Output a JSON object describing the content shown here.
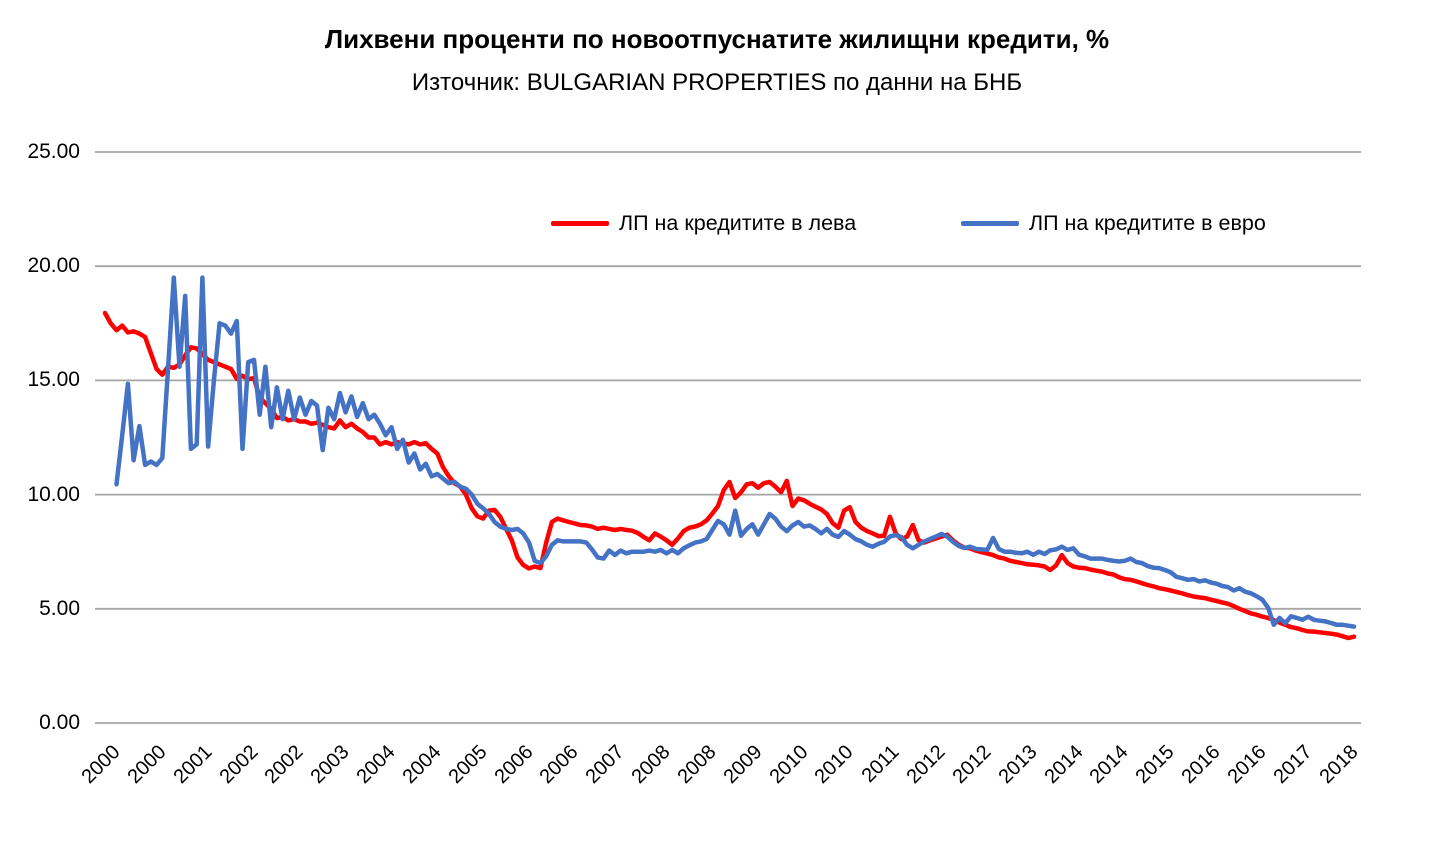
{
  "title": "Лихвени проценти по новоотпуснатите жилищни кредити, %",
  "subtitle": "Източник: BULGARIAN PROPERTIES по данни на БНБ",
  "colors": {
    "series_bgn": "#FF0000",
    "series_eur": "#4472C4",
    "gridline": "#A6A6A6",
    "text": "#000000",
    "background": "#FFFFFF"
  },
  "chart_data": {
    "type": "line",
    "title": "Лихвени проценти по новоотпуснатите жилищни кредити, %",
    "subtitle": "Източник: BULGARIAN PROPERTIES по данни на БНБ",
    "xlabel": "",
    "ylabel": "",
    "ylim": [
      0,
      25
    ],
    "grid": "horizontal",
    "legend_position": "top-center",
    "x_unit": "month",
    "x_start": "2000-01",
    "x_end": "2018-03",
    "x_tick_every": 8,
    "x_tick_labels": [
      "2000",
      "2000",
      "2001",
      "2002",
      "2002",
      "2003",
      "2004",
      "2004",
      "2005",
      "2006",
      "2006",
      "2007",
      "2008",
      "2008",
      "2009",
      "2010",
      "2010",
      "2011",
      "2012",
      "2012",
      "2013",
      "2014",
      "2014",
      "2015",
      "2016",
      "2016",
      "2017",
      "2018"
    ],
    "y_ticks": [
      "25.00",
      "20.00",
      "15.00",
      "10.00",
      "5.00",
      "0.00"
    ],
    "series": [
      {
        "name": "ЛП на кредитите в лева",
        "color": "#FF0000",
        "values": [
          17.95,
          17.5,
          17.2,
          17.4,
          17.1,
          17.15,
          17.05,
          16.9,
          16.2,
          15.5,
          15.25,
          15.6,
          15.55,
          15.7,
          16.1,
          16.45,
          16.4,
          16.15,
          15.9,
          15.8,
          15.7,
          15.6,
          15.5,
          15.07,
          15.2,
          15.05,
          15.1,
          14.25,
          14.0,
          13.75,
          13.35,
          13.4,
          13.25,
          13.3,
          13.2,
          13.2,
          13.1,
          13.15,
          13.05,
          12.95,
          12.9,
          13.25,
          12.95,
          13.1,
          12.9,
          12.74,
          12.5,
          12.5,
          12.2,
          12.3,
          12.2,
          12.3,
          12.25,
          12.2,
          12.3,
          12.2,
          12.25,
          12.0,
          11.8,
          11.2,
          10.8,
          10.5,
          10.35,
          10.0,
          9.4,
          9.05,
          8.95,
          9.3,
          9.33,
          9.03,
          8.5,
          8.0,
          7.25,
          6.92,
          6.77,
          6.85,
          6.78,
          7.9,
          8.8,
          8.95,
          8.87,
          8.8,
          8.74,
          8.67,
          8.65,
          8.6,
          8.5,
          8.55,
          8.5,
          8.45,
          8.5,
          8.45,
          8.42,
          8.32,
          8.15,
          8.0,
          8.3,
          8.16,
          8.0,
          7.8,
          8.08,
          8.4,
          8.55,
          8.6,
          8.7,
          8.87,
          9.17,
          9.5,
          10.2,
          10.55,
          9.85,
          10.1,
          10.45,
          10.5,
          10.3,
          10.5,
          10.55,
          10.35,
          10.1,
          10.6,
          9.5,
          9.83,
          9.75,
          9.6,
          9.47,
          9.35,
          9.15,
          8.75,
          8.55,
          9.3,
          9.45,
          8.8,
          8.55,
          8.4,
          8.3,
          8.18,
          8.2,
          9.03,
          8.3,
          8.05,
          8.16,
          8.67,
          8.0,
          7.9,
          8.0,
          8.08,
          8.16,
          8.24,
          8.0,
          7.8,
          7.68,
          7.65,
          7.55,
          7.48,
          7.42,
          7.35,
          7.25,
          7.2,
          7.1,
          7.05,
          7.0,
          6.95,
          6.93,
          6.9,
          6.85,
          6.7,
          6.9,
          7.35,
          7.0,
          6.85,
          6.8,
          6.78,
          6.72,
          6.67,
          6.63,
          6.55,
          6.5,
          6.38,
          6.3,
          6.27,
          6.2,
          6.12,
          6.04,
          5.98,
          5.9,
          5.86,
          5.8,
          5.74,
          5.68,
          5.6,
          5.54,
          5.5,
          5.47,
          5.4,
          5.34,
          5.28,
          5.22,
          5.12,
          5.0,
          4.9,
          4.8,
          4.74,
          4.66,
          4.6,
          4.5,
          4.4,
          4.3,
          4.2,
          4.15,
          4.07,
          4.01,
          4.0,
          3.97,
          3.94,
          3.91,
          3.87,
          3.8,
          3.72,
          3.78
        ]
      },
      {
        "name": "ЛП на кредитите в евро",
        "color": "#4472C4",
        "values": [
          null,
          null,
          10.45,
          12.6,
          14.85,
          11.5,
          13.0,
          11.3,
          11.45,
          11.3,
          11.6,
          15.5,
          19.5,
          15.6,
          18.7,
          12.0,
          12.2,
          19.5,
          12.1,
          15.0,
          17.5,
          17.4,
          17.05,
          17.6,
          12.0,
          15.8,
          15.9,
          13.5,
          15.6,
          12.95,
          14.7,
          13.3,
          14.55,
          13.3,
          14.25,
          13.5,
          14.1,
          13.9,
          11.95,
          13.8,
          13.3,
          14.45,
          13.6,
          14.3,
          13.4,
          14.0,
          13.3,
          13.5,
          13.1,
          12.6,
          12.95,
          12.0,
          12.4,
          11.4,
          11.8,
          11.1,
          11.35,
          10.8,
          10.9,
          10.7,
          10.5,
          10.56,
          10.34,
          10.26,
          10.0,
          9.6,
          9.4,
          9.16,
          8.8,
          8.6,
          8.5,
          8.45,
          8.5,
          8.3,
          7.9,
          7.1,
          7.0,
          7.3,
          7.8,
          8.0,
          7.95,
          7.95,
          7.95,
          7.95,
          7.9,
          7.6,
          7.25,
          7.2,
          7.55,
          7.36,
          7.55,
          7.43,
          7.5,
          7.5,
          7.5,
          7.55,
          7.5,
          7.58,
          7.43,
          7.58,
          7.43,
          7.65,
          7.78,
          7.9,
          7.95,
          8.05,
          8.45,
          8.85,
          8.7,
          8.25,
          9.3,
          8.2,
          8.5,
          8.7,
          8.25,
          8.7,
          9.15,
          8.95,
          8.6,
          8.4,
          8.65,
          8.8,
          8.6,
          8.65,
          8.5,
          8.3,
          8.5,
          8.25,
          8.15,
          8.4,
          8.25,
          8.05,
          7.95,
          7.8,
          7.72,
          7.85,
          7.94,
          8.16,
          8.23,
          8.14,
          7.8,
          7.65,
          7.8,
          7.95,
          8.05,
          8.16,
          8.28,
          8.16,
          7.94,
          7.75,
          7.66,
          7.72,
          7.62,
          7.6,
          7.58,
          8.1,
          7.62,
          7.5,
          7.5,
          7.45,
          7.43,
          7.5,
          7.37,
          7.5,
          7.4,
          7.56,
          7.6,
          7.72,
          7.58,
          7.65,
          7.37,
          7.3,
          7.2,
          7.2,
          7.2,
          7.14,
          7.1,
          7.07,
          7.1,
          7.2,
          7.05,
          7.0,
          6.87,
          6.8,
          6.78,
          6.7,
          6.6,
          6.4,
          6.34,
          6.27,
          6.3,
          6.2,
          6.25,
          6.15,
          6.1,
          6.0,
          5.95,
          5.8,
          5.9,
          5.75,
          5.68,
          5.55,
          5.4,
          5.05,
          4.3,
          4.6,
          4.37,
          4.67,
          4.6,
          4.52,
          4.65,
          4.52,
          4.48,
          4.45,
          4.38,
          4.3,
          4.3,
          4.26,
          4.22
        ]
      }
    ]
  }
}
